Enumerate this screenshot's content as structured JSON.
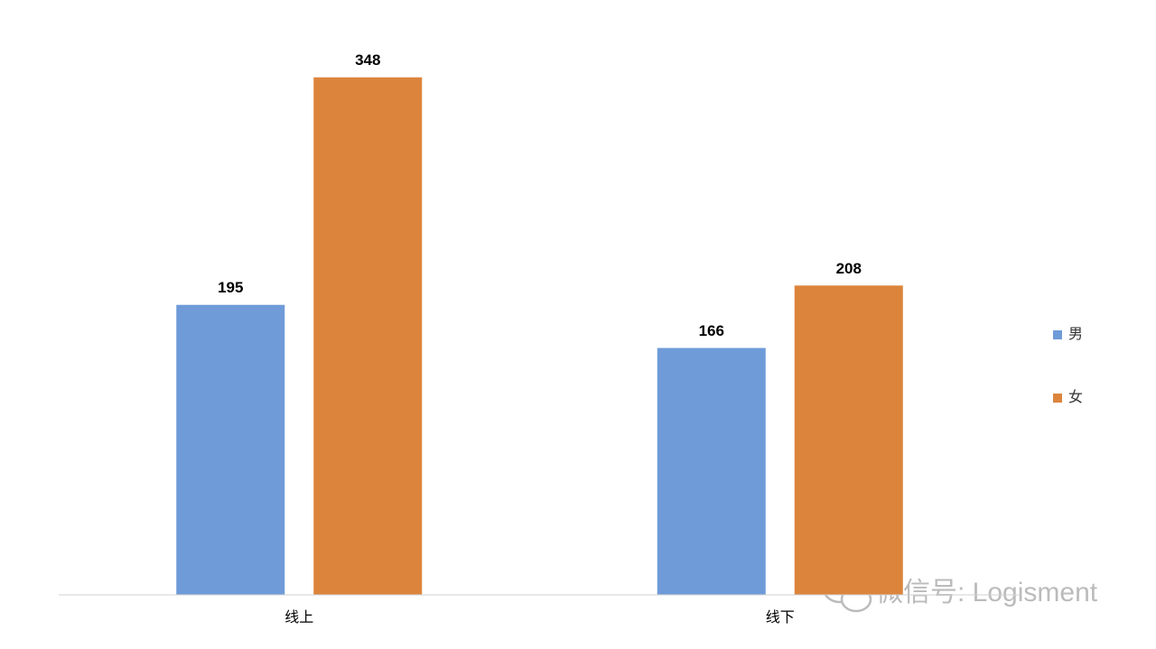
{
  "chart_data": {
    "type": "bar",
    "categories": [
      "线上",
      "线下"
    ],
    "series": [
      {
        "name": "男",
        "color": "#6f9bd8",
        "values": [
          195,
          166
        ]
      },
      {
        "name": "女",
        "color": "#dc843c",
        "values": [
          348,
          208
        ]
      }
    ],
    "ylim": [
      0,
      400
    ],
    "legend": "right",
    "watermark": "微信号: Logisment"
  }
}
